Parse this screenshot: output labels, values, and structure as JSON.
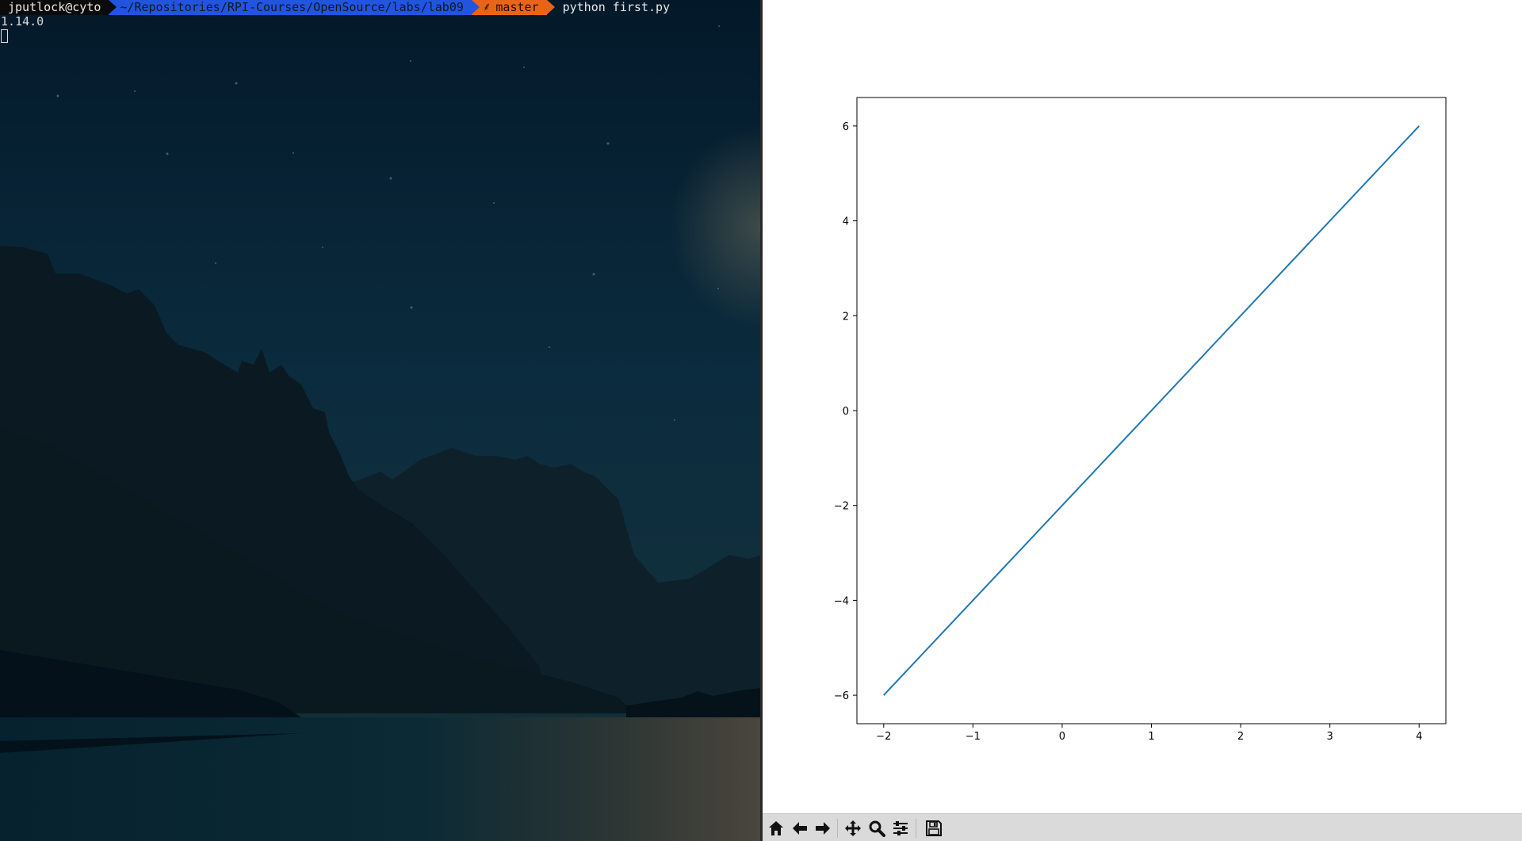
{
  "terminal": {
    "prompt": {
      "user_host": "jputlock@cyto",
      "path": "~/Repositories/RPI-Courses/OpenSource/labs/lab09",
      "branch": "master",
      "branch_icon": "git-branch-icon",
      "command": "python first.py"
    },
    "output": [
      "1.14.0"
    ]
  },
  "figure": {
    "toolbar": {
      "buttons": [
        "home-icon",
        "back-arrow-icon",
        "forward-arrow-icon",
        "pan-move-icon",
        "zoom-magnifier-icon",
        "configure-subplots-icon",
        "save-floppy-icon"
      ]
    }
  },
  "chart_data": {
    "type": "line",
    "title": "",
    "xlabel": "",
    "ylabel": "",
    "x": [
      -2,
      4
    ],
    "series": [
      {
        "values": [
          -6,
          6
        ],
        "color": "#1f77b4"
      }
    ],
    "xlim": [
      -2.3,
      4.3
    ],
    "ylim": [
      -6.6,
      6.6
    ],
    "xticks": [
      -2,
      -1,
      0,
      1,
      2,
      3,
      4
    ],
    "yticks": [
      -6,
      -4,
      -2,
      0,
      2,
      4,
      6
    ],
    "xtick_labels": [
      "−2",
      "−1",
      "0",
      "1",
      "2",
      "3",
      "4"
    ],
    "ytick_labels": [
      "−6",
      "−4",
      "−2",
      "0",
      "2",
      "4",
      "6"
    ],
    "grid": false,
    "legend": "none"
  },
  "colors": {
    "line": "#1f77b4",
    "path_segment": "#2155e0",
    "branch_segment": "#ea6418",
    "terminal_bg": "#0c2232"
  }
}
